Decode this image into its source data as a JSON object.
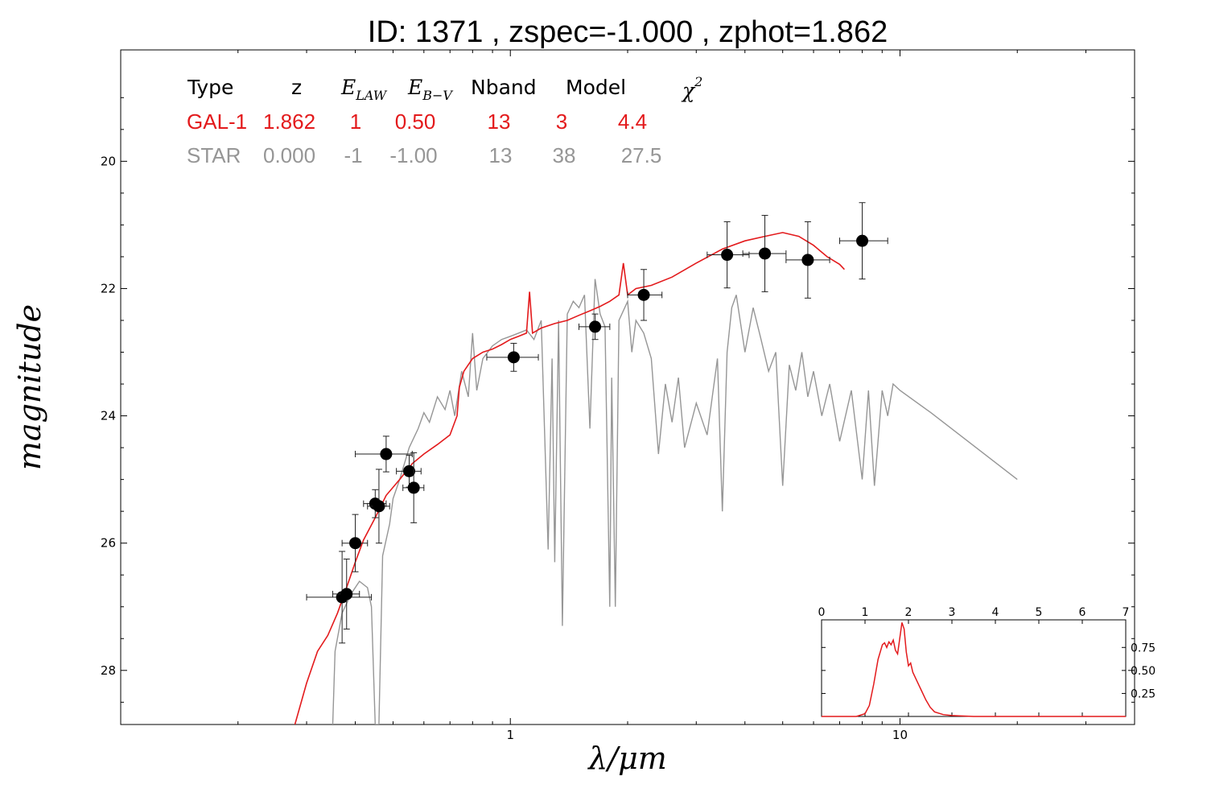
{
  "title": "ID:  1371  , zspec=-1.000 , zphot=1.862",
  "colors": {
    "galaxy": "#e31a1c",
    "star": "#969696",
    "points": "#000000"
  },
  "table": {
    "headers": [
      "Type",
      "z",
      "E_LAW",
      "E_B-V",
      "Nband",
      "Model",
      "χ2"
    ],
    "rows": [
      {
        "name": "galaxy",
        "values": [
          "GAL-1",
          "1.862",
          "1",
          "0.50",
          "13",
          "3",
          "4.4"
        ]
      },
      {
        "name": "star",
        "values": [
          "STAR",
          "0.000",
          "-1",
          "-1.00",
          "13",
          "38",
          "27.5"
        ]
      }
    ]
  },
  "chart_data": [
    {
      "type": "scatter",
      "xlabel": "λ/μm",
      "ylabel": "magnitude",
      "x_scale": "log",
      "xlim": [
        0.1,
        40
      ],
      "ylim": [
        28.85,
        18.25
      ],
      "x_ticks": [
        1,
        10
      ],
      "x_tick_labels": [
        "1",
        "10"
      ],
      "y_ticks": [
        20,
        22,
        24,
        26,
        28
      ],
      "y_tick_labels": [
        "20",
        "22",
        "24",
        "26",
        "28"
      ],
      "photometry": [
        {
          "x": 0.37,
          "y": 26.85,
          "xerr": [
            0.3,
            0.44
          ],
          "yerr": 0.72
        },
        {
          "x": 0.38,
          "y": 26.8,
          "xerr": [
            0.35,
            0.41
          ],
          "yerr": 0.55
        },
        {
          "x": 0.4,
          "y": 26.0,
          "xerr": [
            0.37,
            0.43
          ],
          "yerr": 0.45
        },
        {
          "x": 0.45,
          "y": 25.38,
          "xerr": [
            0.42,
            0.48
          ],
          "yerr": 0.22
        },
        {
          "x": 0.46,
          "y": 25.42,
          "xerr": [
            0.43,
            0.49
          ],
          "yerr": 0.58
        },
        {
          "x": 0.48,
          "y": 24.6,
          "xerr": [
            0.4,
            0.56
          ],
          "yerr": 0.28
        },
        {
          "x": 0.55,
          "y": 24.87,
          "xerr": [
            0.51,
            0.59
          ],
          "yerr": 0.25
        },
        {
          "x": 0.565,
          "y": 25.13,
          "xerr": [
            0.53,
            0.6
          ],
          "yerr": 0.55
        },
        {
          "x": 1.02,
          "y": 23.08,
          "xerr": [
            0.87,
            1.18
          ],
          "yerr": 0.22
        },
        {
          "x": 1.65,
          "y": 22.6,
          "xerr": [
            1.5,
            1.8
          ],
          "yerr": 0.2
        },
        {
          "x": 2.2,
          "y": 22.1,
          "xerr": [
            2.0,
            2.45
          ],
          "yerr": 0.4
        },
        {
          "x": 3.6,
          "y": 21.47,
          "xerr": [
            3.2,
            4.1
          ],
          "yerr": 0.52
        },
        {
          "x": 4.5,
          "y": 21.45,
          "xerr": [
            3.95,
            5.1
          ],
          "yerr": 0.6
        },
        {
          "x": 5.8,
          "y": 21.55,
          "xerr": [
            5.1,
            6.6
          ],
          "yerr": 0.6
        },
        {
          "x": 8.0,
          "y": 21.25,
          "xerr": [
            7.0,
            9.3
          ],
          "yerr": 0.6
        }
      ],
      "series": [
        {
          "name": "GAL-1",
          "points": [
            [
              0.28,
              28.85
            ],
            [
              0.3,
              28.2
            ],
            [
              0.32,
              27.7
            ],
            [
              0.34,
              27.45
            ],
            [
              0.36,
              27.1
            ],
            [
              0.38,
              26.7
            ],
            [
              0.4,
              26.3
            ],
            [
              0.42,
              25.95
            ],
            [
              0.45,
              25.6
            ],
            [
              0.48,
              25.25
            ],
            [
              0.52,
              25.0
            ],
            [
              0.56,
              24.75
            ],
            [
              0.6,
              24.6
            ],
            [
              0.65,
              24.45
            ],
            [
              0.7,
              24.3
            ],
            [
              0.73,
              24.0
            ],
            [
              0.74,
              23.55
            ],
            [
              0.76,
              23.3
            ],
            [
              0.8,
              23.1
            ],
            [
              0.85,
              23.0
            ],
            [
              0.9,
              22.95
            ],
            [
              0.95,
              22.88
            ],
            [
              1.0,
              22.8
            ],
            [
              1.05,
              22.75
            ],
            [
              1.1,
              22.7
            ],
            [
              1.12,
              22.05
            ],
            [
              1.14,
              22.7
            ],
            [
              1.2,
              22.62
            ],
            [
              1.3,
              22.55
            ],
            [
              1.4,
              22.5
            ],
            [
              1.5,
              22.42
            ],
            [
              1.6,
              22.35
            ],
            [
              1.7,
              22.28
            ],
            [
              1.8,
              22.2
            ],
            [
              1.9,
              22.1
            ],
            [
              1.95,
              21.6
            ],
            [
              2.0,
              22.1
            ],
            [
              2.1,
              22.0
            ],
            [
              2.3,
              21.95
            ],
            [
              2.6,
              21.82
            ],
            [
              3.0,
              21.6
            ],
            [
              3.5,
              21.38
            ],
            [
              4.0,
              21.25
            ],
            [
              4.5,
              21.18
            ],
            [
              5.0,
              21.12
            ],
            [
              5.5,
              21.18
            ],
            [
              6.0,
              21.32
            ],
            [
              6.5,
              21.5
            ],
            [
              7.0,
              21.62
            ],
            [
              7.2,
              21.7
            ]
          ]
        },
        {
          "name": "STAR",
          "points": [
            [
              0.35,
              28.85
            ],
            [
              0.355,
              27.7
            ],
            [
              0.37,
              27.1
            ],
            [
              0.39,
              26.8
            ],
            [
              0.41,
              26.6
            ],
            [
              0.43,
              26.7
            ],
            [
              0.44,
              27.0
            ],
            [
              0.45,
              28.85
            ],
            [
              0.46,
              28.85
            ],
            [
              0.47,
              26.2
            ],
            [
              0.49,
              25.7
            ],
            [
              0.5,
              25.3
            ],
            [
              0.52,
              25.0
            ],
            [
              0.55,
              24.5
            ],
            [
              0.58,
              24.2
            ],
            [
              0.6,
              23.95
            ],
            [
              0.62,
              24.1
            ],
            [
              0.65,
              23.7
            ],
            [
              0.68,
              23.9
            ],
            [
              0.7,
              23.6
            ],
            [
              0.72,
              24.0
            ],
            [
              0.75,
              23.3
            ],
            [
              0.78,
              23.7
            ],
            [
              0.8,
              22.7
            ],
            [
              0.82,
              23.6
            ],
            [
              0.85,
              23.1
            ],
            [
              0.9,
              22.9
            ],
            [
              0.95,
              22.8
            ],
            [
              1.0,
              22.75
            ],
            [
              1.05,
              22.7
            ],
            [
              1.1,
              22.65
            ],
            [
              1.15,
              22.8
            ],
            [
              1.2,
              22.5
            ],
            [
              1.25,
              26.1
            ],
            [
              1.28,
              23.1
            ],
            [
              1.3,
              26.3
            ],
            [
              1.33,
              22.5
            ],
            [
              1.36,
              27.3
            ],
            [
              1.4,
              22.4
            ],
            [
              1.45,
              22.2
            ],
            [
              1.5,
              22.3
            ],
            [
              1.55,
              22.1
            ],
            [
              1.6,
              24.2
            ],
            [
              1.65,
              21.85
            ],
            [
              1.7,
              22.4
            ],
            [
              1.75,
              22.6
            ],
            [
              1.8,
              27.0
            ],
            [
              1.82,
              23.4
            ],
            [
              1.86,
              27.0
            ],
            [
              1.9,
              22.5
            ],
            [
              2.0,
              22.2
            ],
            [
              2.05,
              23.0
            ],
            [
              2.1,
              22.5
            ],
            [
              2.2,
              22.7
            ],
            [
              2.3,
              23.1
            ],
            [
              2.4,
              24.6
            ],
            [
              2.5,
              23.5
            ],
            [
              2.6,
              24.1
            ],
            [
              2.7,
              23.4
            ],
            [
              2.8,
              24.5
            ],
            [
              3.0,
              23.8
            ],
            [
              3.2,
              24.3
            ],
            [
              3.4,
              23.1
            ],
            [
              3.5,
              25.5
            ],
            [
              3.6,
              23.0
            ],
            [
              3.7,
              22.3
            ],
            [
              3.8,
              22.1
            ],
            [
              4.0,
              23.0
            ],
            [
              4.2,
              22.3
            ],
            [
              4.4,
              22.8
            ],
            [
              4.6,
              23.3
            ],
            [
              4.8,
              23.0
            ],
            [
              5.0,
              25.1
            ],
            [
              5.2,
              23.2
            ],
            [
              5.4,
              23.6
            ],
            [
              5.6,
              23.0
            ],
            [
              5.8,
              23.7
            ],
            [
              6.0,
              23.3
            ],
            [
              6.3,
              24.0
            ],
            [
              6.6,
              23.5
            ],
            [
              7.0,
              24.4
            ],
            [
              7.5,
              23.6
            ],
            [
              8.0,
              25.0
            ],
            [
              8.3,
              23.6
            ],
            [
              8.6,
              25.1
            ],
            [
              9.0,
              23.6
            ],
            [
              9.3,
              24.0
            ],
            [
              9.6,
              23.5
            ],
            [
              10.0,
              23.6
            ],
            [
              12.0,
              23.95
            ],
            [
              20.0,
              25.0
            ]
          ]
        }
      ]
    },
    {
      "type": "line",
      "xlim": [
        0,
        7
      ],
      "ylim": [
        0,
        1.05
      ],
      "x_ticks": [
        0,
        1,
        2,
        3,
        4,
        5,
        6,
        7
      ],
      "x_tick_labels": [
        "0",
        "1",
        "2",
        "3",
        "4",
        "5",
        "6",
        "7"
      ],
      "y_ticks": [
        0.25,
        0.5,
        0.75
      ],
      "y_tick_labels": [
        "0.25",
        "0.50",
        "0.75"
      ],
      "series": [
        {
          "points": [
            [
              0,
              0.0
            ],
            [
              0.8,
              0.0
            ],
            [
              1.0,
              0.03
            ],
            [
              1.1,
              0.12
            ],
            [
              1.2,
              0.35
            ],
            [
              1.3,
              0.62
            ],
            [
              1.4,
              0.78
            ],
            [
              1.45,
              0.8
            ],
            [
              1.5,
              0.75
            ],
            [
              1.55,
              0.81
            ],
            [
              1.6,
              0.78
            ],
            [
              1.65,
              0.83
            ],
            [
              1.7,
              0.72
            ],
            [
              1.75,
              0.68
            ],
            [
              1.8,
              0.85
            ],
            [
              1.85,
              1.02
            ],
            [
              1.9,
              0.95
            ],
            [
              1.95,
              0.7
            ],
            [
              2.0,
              0.55
            ],
            [
              2.05,
              0.58
            ],
            [
              2.1,
              0.48
            ],
            [
              2.2,
              0.38
            ],
            [
              2.3,
              0.28
            ],
            [
              2.4,
              0.18
            ],
            [
              2.5,
              0.1
            ],
            [
              2.6,
              0.05
            ],
            [
              2.8,
              0.02
            ],
            [
              3.0,
              0.01
            ],
            [
              3.5,
              0.0
            ],
            [
              7,
              0.0
            ]
          ]
        }
      ]
    }
  ]
}
